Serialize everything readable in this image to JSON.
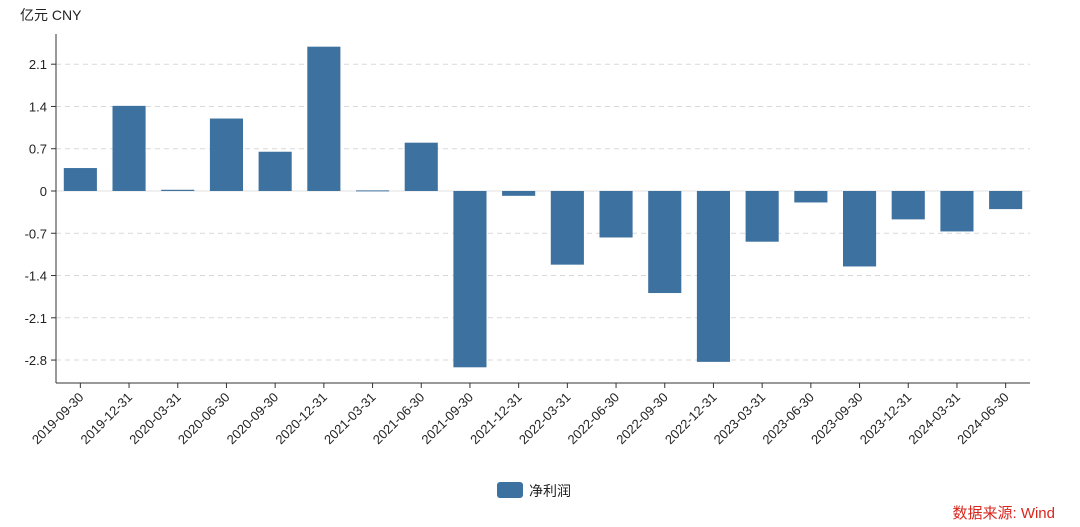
{
  "chart_data": {
    "type": "bar",
    "unit_label": "亿元  CNY",
    "categories": [
      "2019-09-30",
      "2019-12-31",
      "2020-03-31",
      "2020-06-30",
      "2020-09-30",
      "2020-12-31",
      "2021-03-31",
      "2021-06-30",
      "2021-09-30",
      "2021-12-31",
      "2022-03-31",
      "2022-06-30",
      "2022-09-30",
      "2022-12-31",
      "2023-03-31",
      "2023-06-30",
      "2023-09-30",
      "2023-12-31",
      "2024-03-31",
      "2024-06-30"
    ],
    "series": [
      {
        "name": "净利润",
        "color": "#3d72a0",
        "values": [
          0.38,
          1.41,
          0.02,
          1.2,
          0.65,
          2.39,
          0.01,
          0.8,
          -2.92,
          -0.08,
          -1.22,
          -0.77,
          -1.69,
          -2.83,
          -0.84,
          -0.19,
          -1.25,
          -0.47,
          -0.67,
          -0.3
        ]
      }
    ],
    "yticks": [
      2.1,
      1.4,
      0.7,
      0,
      -0.7,
      -1.4,
      -2.1,
      -2.8
    ],
    "ytick_labels": [
      "2.1",
      "1.4",
      "0.7",
      "0",
      "-0.7",
      "-1.4",
      "-2.1",
      "-2.8"
    ],
    "ylim": [
      -3.18,
      2.6
    ],
    "grid": true,
    "legend_position": "bottom-center",
    "source": "数据来源: Wind"
  }
}
